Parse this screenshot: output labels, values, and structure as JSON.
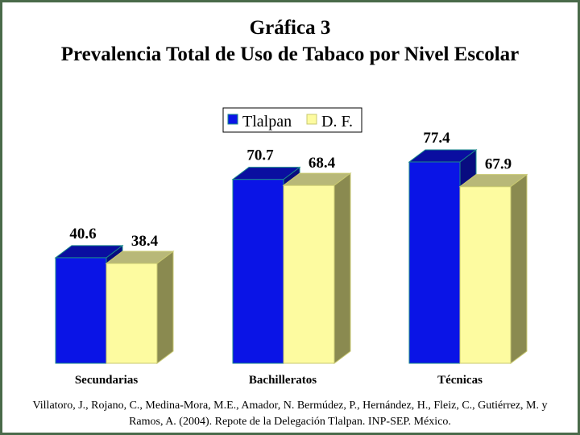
{
  "title_line1": "Gráfica 3",
  "title_line2": "Prevalencia Total de Uso de Tabaco por Nivel Escolar",
  "source_text": "Villatoro, J., Rojano, C., Medina-Mora, M.E., Amador, N. Bermúdez, P., Hernández, H., Fleiz, C., Gutiérrez, M. y Ramos, A. (2004). Repote de la Delegación Tlalpan. INP-SEP. México.",
  "chart_data": {
    "type": "bar",
    "title": "Gráfica 3 Prevalencia Total de Uso de Tabaco por Nivel Escolar",
    "categories": [
      "Secundarias",
      "Bachilleratos",
      "Técnicas"
    ],
    "series": [
      {
        "name": "Tlalpan",
        "values": [
          40.6,
          70.7,
          77.4
        ],
        "color": "#0a14e6"
      },
      {
        "name": "D. F.",
        "values": [
          38.4,
          68.4,
          67.9
        ],
        "color": "#fdfba0"
      }
    ],
    "xlabel": "",
    "ylabel": "",
    "ylim": [
      0,
      90
    ],
    "grid": false,
    "legend_position": "top-center",
    "style": "3d-bar"
  }
}
